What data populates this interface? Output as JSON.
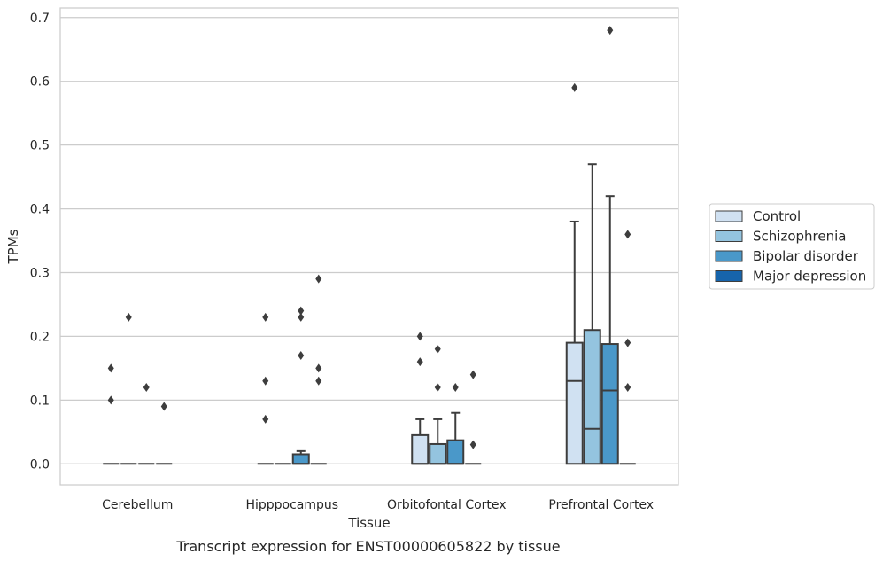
{
  "chart_data": {
    "type": "box",
    "caption": "Transcript expression for ENST00000605822 by tissue",
    "xlabel": "Tissue",
    "ylabel": "TPMs",
    "ylim": [
      -0.033,
      0.715
    ],
    "yticks": [
      0.0,
      0.1,
      0.2,
      0.3,
      0.4,
      0.5,
      0.6,
      0.7
    ],
    "ytick_labels": [
      "0.0",
      "0.1",
      "0.2",
      "0.3",
      "0.4",
      "0.5",
      "0.6",
      "0.7"
    ],
    "grid": "horizontal",
    "legend_position": "right",
    "categories": [
      "Cerebellum",
      "Hipppocampus",
      "Orbitofontal Cortex",
      "Prefrontal Cortex"
    ],
    "series": [
      {
        "name": "Control",
        "color": "#d0e1f2",
        "boxes": [
          {
            "whislo": 0,
            "q1": 0,
            "med": 0,
            "q3": 0,
            "whishi": 0,
            "fliers": [
              0.1,
              0.15
            ]
          },
          {
            "whislo": 0,
            "q1": 0,
            "med": 0,
            "q3": 0,
            "whishi": 0,
            "fliers": [
              0.07,
              0.13,
              0.23
            ]
          },
          {
            "whislo": 0,
            "q1": 0,
            "med": 0,
            "q3": 0.045,
            "whishi": 0.07,
            "fliers": [
              0.16,
              0.2
            ]
          },
          {
            "whislo": 0,
            "q1": 0,
            "med": 0.13,
            "q3": 0.19,
            "whishi": 0.38,
            "fliers": [
              0.59
            ]
          }
        ]
      },
      {
        "name": "Schizophrenia",
        "color": "#94c4df",
        "boxes": [
          {
            "whislo": 0,
            "q1": 0,
            "med": 0,
            "q3": 0,
            "whishi": 0,
            "fliers": [
              0.23
            ]
          },
          {
            "whislo": 0,
            "q1": 0,
            "med": 0,
            "q3": 0,
            "whishi": 0,
            "fliers": []
          },
          {
            "whislo": 0,
            "q1": 0,
            "med": 0,
            "q3": 0.031,
            "whishi": 0.07,
            "fliers": [
              0.12,
              0.18
            ]
          },
          {
            "whislo": 0,
            "q1": 0,
            "med": 0.055,
            "q3": 0.21,
            "whishi": 0.47,
            "fliers": []
          }
        ]
      },
      {
        "name": "Bipolar disorder",
        "color": "#4a98c9",
        "boxes": [
          {
            "whislo": 0,
            "q1": 0,
            "med": 0,
            "q3": 0,
            "whishi": 0,
            "fliers": [
              0.12
            ]
          },
          {
            "whislo": 0,
            "q1": 0,
            "med": 0,
            "q3": 0.015,
            "whishi": 0.02,
            "fliers": [
              0.17,
              0.23,
              0.24
            ]
          },
          {
            "whislo": 0,
            "q1": 0,
            "med": 0,
            "q3": 0.037,
            "whishi": 0.08,
            "fliers": [
              0.12
            ]
          },
          {
            "whislo": 0,
            "q1": 0,
            "med": 0.115,
            "q3": 0.188,
            "whishi": 0.42,
            "fliers": [
              0.68
            ]
          }
        ]
      },
      {
        "name": "Major depression",
        "color": "#1764ab",
        "boxes": [
          {
            "whislo": 0,
            "q1": 0,
            "med": 0,
            "q3": 0,
            "whishi": 0,
            "fliers": [
              0.09
            ]
          },
          {
            "whislo": 0,
            "q1": 0,
            "med": 0,
            "q3": 0,
            "whishi": 0,
            "fliers": [
              0.13,
              0.15,
              0.29
            ]
          },
          {
            "whislo": 0,
            "q1": 0,
            "med": 0,
            "q3": 0,
            "whishi": 0,
            "fliers": [
              0.03,
              0.14
            ]
          },
          {
            "whislo": 0,
            "q1": 0,
            "med": 0,
            "q3": 0,
            "whishi": 0,
            "fliers": [
              0.12,
              0.19,
              0.36
            ]
          }
        ]
      }
    ]
  }
}
